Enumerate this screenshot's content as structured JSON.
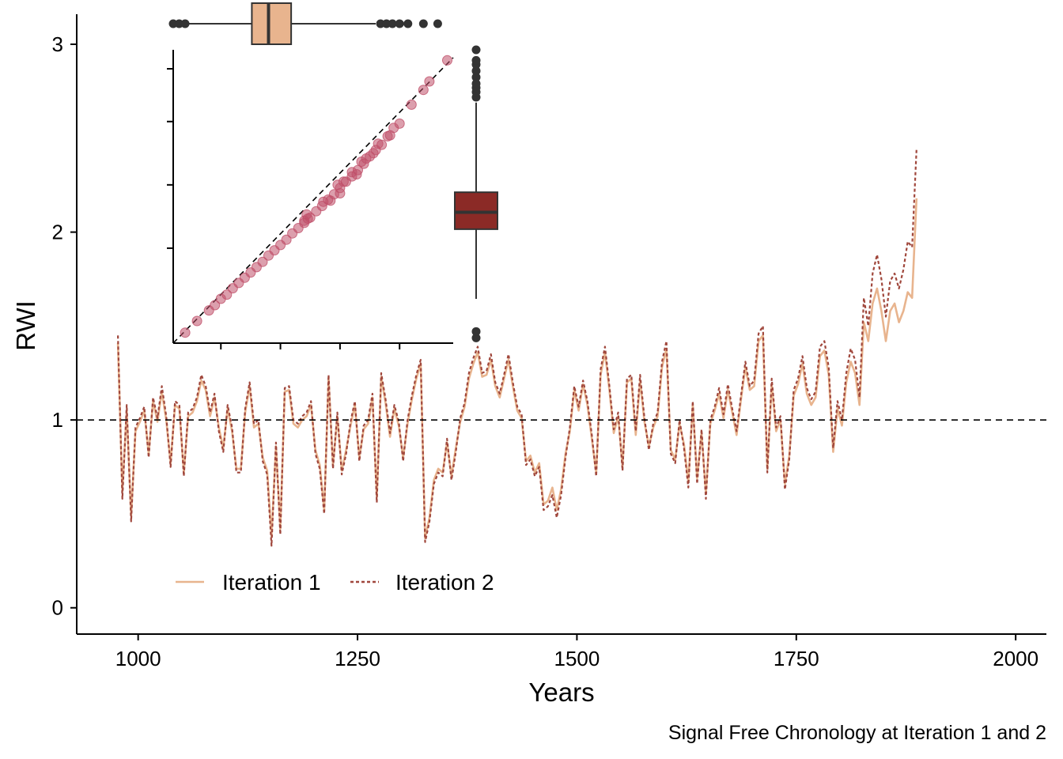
{
  "chart_data": {
    "type": "line",
    "caption": "Signal Free Chronology at Iteration 1 and 2",
    "xlabel": "Years",
    "ylabel": "RWI",
    "xlim": [
      930,
      2035
    ],
    "ylim": [
      -0.14,
      3.16
    ],
    "x_ticks": [
      1000,
      1250,
      1500,
      1750,
      2000
    ],
    "y_ticks": [
      0,
      1,
      2,
      3
    ],
    "reference_line": {
      "y": 1,
      "style": "dashed"
    },
    "legend": {
      "placement": "bottom-left",
      "orientation": "horizontal"
    },
    "colors": {
      "iteration1": "#e8b48e",
      "iteration2": "#a0473c",
      "box_top": "#e8b48e",
      "box_right": "#8b2a26",
      "scatter": "#c0506a"
    },
    "series": [
      {
        "name": "Iteration 1",
        "style": "solid",
        "x_start": 977,
        "x_step": 5,
        "values": [
          1.41,
          0.62,
          1.05,
          0.49,
          0.94,
          0.99,
          1.05,
          0.82,
          1.1,
          0.99,
          1.15,
          1.0,
          0.77,
          1.08,
          1.06,
          0.72,
          1.02,
          1.04,
          1.1,
          1.21,
          1.16,
          1.02,
          1.12,
          0.96,
          0.85,
          1.06,
          0.94,
          0.74,
          0.74,
          1.04,
          1.18,
          0.96,
          0.98,
          0.8,
          0.73,
          0.38,
          0.86,
          0.42,
          1.15,
          1.16,
          0.98,
          0.96,
          1.0,
          1.02,
          1.08,
          0.84,
          0.76,
          0.52,
          1.22,
          0.76,
          1.02,
          0.73,
          0.84,
          0.97,
          1.08,
          0.8,
          0.95,
          0.98,
          1.12,
          0.59,
          1.23,
          1.09,
          0.91,
          1.06,
          0.97,
          0.8,
          0.98,
          1.11,
          1.22,
          1.3,
          0.37,
          0.48,
          0.68,
          0.74,
          0.72,
          0.88,
          0.7,
          0.85,
          0.99,
          1.07,
          1.22,
          1.3,
          1.36,
          1.23,
          1.24,
          1.32,
          1.18,
          1.12,
          1.22,
          1.32,
          1.18,
          1.05,
          1.01,
          0.78,
          0.81,
          0.72,
          0.77,
          0.55,
          0.57,
          0.64,
          0.52,
          0.63,
          0.82,
          0.94,
          1.16,
          1.05,
          1.19,
          1.08,
          0.9,
          0.72,
          1.24,
          1.36,
          1.16,
          0.93,
          1.02,
          0.75,
          1.2,
          1.22,
          0.92,
          1.21,
          0.99,
          0.86,
          0.96,
          1.02,
          1.28,
          1.38,
          0.84,
          0.79,
          0.98,
          0.87,
          0.67,
          1.08,
          0.69,
          0.93,
          0.61,
          0.98,
          1.05,
          1.14,
          1.01,
          1.16,
          1.04,
          0.92,
          1.11,
          1.28,
          1.16,
          1.18,
          1.42,
          1.45,
          0.74,
          1.19,
          0.94,
          1.0,
          0.66,
          0.81,
          1.13,
          1.19,
          1.3,
          1.14,
          1.08,
          1.12,
          1.34,
          1.37,
          1.24,
          0.83,
          1.06,
          0.97,
          1.2,
          1.31,
          1.25,
          1.08,
          1.52,
          1.42,
          1.62,
          1.7,
          1.58,
          1.42,
          1.58,
          1.62,
          1.52,
          1.58,
          1.68,
          1.65,
          2.18
        ]
      },
      {
        "name": "Iteration 2",
        "style": "dashed",
        "x_start": 977,
        "x_step": 5,
        "values": [
          1.45,
          0.58,
          1.08,
          0.46,
          0.96,
          1.01,
          1.07,
          0.8,
          1.12,
          1.01,
          1.18,
          1.02,
          0.75,
          1.1,
          1.08,
          0.7,
          1.04,
          1.06,
          1.12,
          1.24,
          1.18,
          1.04,
          1.14,
          0.94,
          0.83,
          1.08,
          0.96,
          0.72,
          0.72,
          1.06,
          1.2,
          0.98,
          1.0,
          0.78,
          0.71,
          0.33,
          0.88,
          0.39,
          1.17,
          1.18,
          1.0,
          0.98,
          1.02,
          1.04,
          1.1,
          0.82,
          0.74,
          0.5,
          1.24,
          0.74,
          1.04,
          0.71,
          0.82,
          0.99,
          1.1,
          0.78,
          0.97,
          1.0,
          1.14,
          0.56,
          1.25,
          1.11,
          0.93,
          1.08,
          0.99,
          0.78,
          1.0,
          1.13,
          1.24,
          1.32,
          0.35,
          0.46,
          0.66,
          0.72,
          0.7,
          0.9,
          0.68,
          0.83,
          1.01,
          1.09,
          1.25,
          1.33,
          1.39,
          1.25,
          1.26,
          1.35,
          1.2,
          1.14,
          1.24,
          1.35,
          1.2,
          1.07,
          1.03,
          0.76,
          0.79,
          0.7,
          0.75,
          0.52,
          0.54,
          0.6,
          0.48,
          0.6,
          0.8,
          0.96,
          1.18,
          1.07,
          1.21,
          1.1,
          0.92,
          0.7,
          1.27,
          1.39,
          1.18,
          0.95,
          1.04,
          0.73,
          1.22,
          1.24,
          0.94,
          1.24,
          1.01,
          0.84,
          0.98,
          1.04,
          1.31,
          1.42,
          0.82,
          0.77,
          1.0,
          0.85,
          0.64,
          1.1,
          0.66,
          0.95,
          0.58,
          1.0,
          1.07,
          1.17,
          1.03,
          1.19,
          1.06,
          0.94,
          1.13,
          1.31,
          1.18,
          1.21,
          1.46,
          1.5,
          0.72,
          1.22,
          0.96,
          1.02,
          0.63,
          0.79,
          1.16,
          1.22,
          1.34,
          1.17,
          1.11,
          1.15,
          1.39,
          1.42,
          1.28,
          0.85,
          1.1,
          1.0,
          1.25,
          1.38,
          1.32,
          1.12,
          1.65,
          1.5,
          1.78,
          1.88,
          1.75,
          1.55,
          1.74,
          1.78,
          1.7,
          1.8,
          1.95,
          1.92,
          2.44
        ]
      }
    ],
    "inset_scatter": {
      "type": "scatter",
      "description_of_axes": "Iteration 1 vs Iteration 2 RWI",
      "xlim": [
        0.2,
        2.55
      ],
      "ylim": [
        0.2,
        2.98
      ],
      "x_ticks": [
        0.6,
        1.1,
        1.6,
        2.1
      ],
      "y_ticks": [
        1.1,
        1.7,
        2.3,
        2.8
      ],
      "identity_line": true,
      "points": [
        [
          0.3,
          0.3
        ],
        [
          0.4,
          0.41
        ],
        [
          0.5,
          0.51
        ],
        [
          0.55,
          0.56
        ],
        [
          0.6,
          0.62
        ],
        [
          0.65,
          0.66
        ],
        [
          0.7,
          0.72
        ],
        [
          0.75,
          0.77
        ],
        [
          0.8,
          0.82
        ],
        [
          0.85,
          0.87
        ],
        [
          0.9,
          0.92
        ],
        [
          0.95,
          0.97
        ],
        [
          1.0,
          1.03
        ],
        [
          1.05,
          1.08
        ],
        [
          1.1,
          1.13
        ],
        [
          1.15,
          1.18
        ],
        [
          1.2,
          1.24
        ],
        [
          1.25,
          1.29
        ],
        [
          1.3,
          1.34
        ],
        [
          1.35,
          1.39
        ],
        [
          1.4,
          1.45
        ],
        [
          1.45,
          1.5
        ],
        [
          1.5,
          1.56
        ],
        [
          1.55,
          1.61
        ],
        [
          1.6,
          1.67
        ],
        [
          1.65,
          1.73
        ],
        [
          1.7,
          1.78
        ],
        [
          1.75,
          1.84
        ],
        [
          1.8,
          1.9
        ],
        [
          1.85,
          1.97
        ],
        [
          1.9,
          2.03
        ],
        [
          1.95,
          2.08
        ],
        [
          2.0,
          2.16
        ],
        [
          2.05,
          2.24
        ],
        [
          2.1,
          2.28
        ],
        [
          2.2,
          2.46
        ],
        [
          2.3,
          2.6
        ],
        [
          2.35,
          2.68
        ],
        [
          2.5,
          2.88
        ],
        [
          1.3,
          1.36
        ],
        [
          1.32,
          1.42
        ],
        [
          1.33,
          1.38
        ],
        [
          1.46,
          1.54
        ],
        [
          1.52,
          1.55
        ],
        [
          1.58,
          1.7
        ],
        [
          1.6,
          1.62
        ],
        [
          1.63,
          1.73
        ],
        [
          1.7,
          1.82
        ],
        [
          1.74,
          1.8
        ],
        [
          1.78,
          1.92
        ],
        [
          1.82,
          1.95
        ],
        [
          1.88,
          2.0
        ],
        [
          1.92,
          2.09
        ],
        [
          2.02,
          2.17
        ]
      ]
    },
    "inset_box_top": {
      "type": "boxplot",
      "whisker": [
        0.2,
        1.9
      ],
      "q1": 0.86,
      "median": 1.0,
      "q3": 1.19,
      "outliers": [
        0.2,
        0.25,
        0.3,
        1.94,
        1.99,
        2.04,
        2.1,
        2.17,
        2.3,
        2.42
      ]
    },
    "inset_box_right": {
      "type": "boxplot",
      "whisker": [
        0.62,
        2.48
      ],
      "q1": 1.28,
      "median": 1.44,
      "q3": 1.63,
      "outliers": [
        0.25,
        0.31,
        2.53,
        2.58,
        2.62,
        2.66,
        2.72,
        2.78,
        2.84,
        2.88,
        2.98
      ]
    }
  }
}
